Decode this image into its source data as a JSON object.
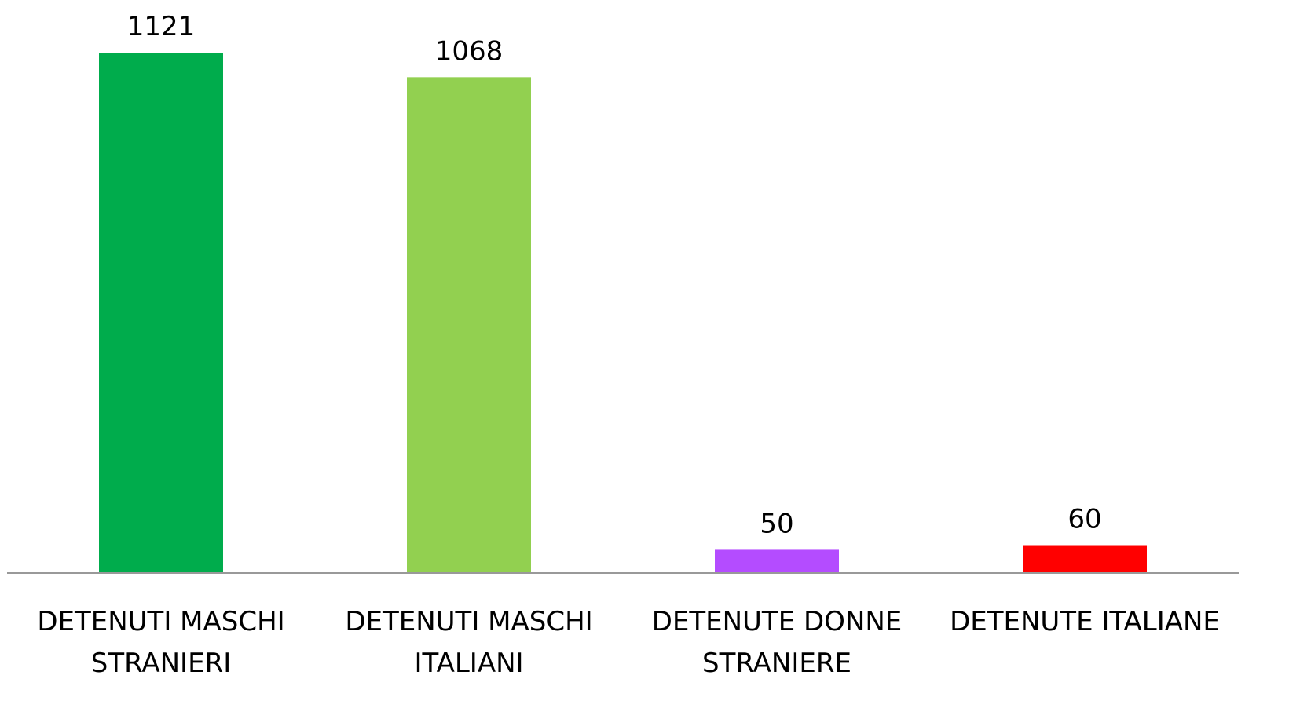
{
  "chart_data": {
    "type": "bar",
    "categories": [
      "DETENUTI MASCHI STRANIERI",
      "DETENUTI MASCHI ITALIANI",
      "DETENUTE DONNE STRANIERE",
      "DETENUTE ITALIANE"
    ],
    "values": [
      1121,
      1068,
      50,
      60
    ],
    "colors": [
      "#00ac4c",
      "#92d050",
      "#b44cff",
      "#ff0000"
    ],
    "data_labels": true
  }
}
